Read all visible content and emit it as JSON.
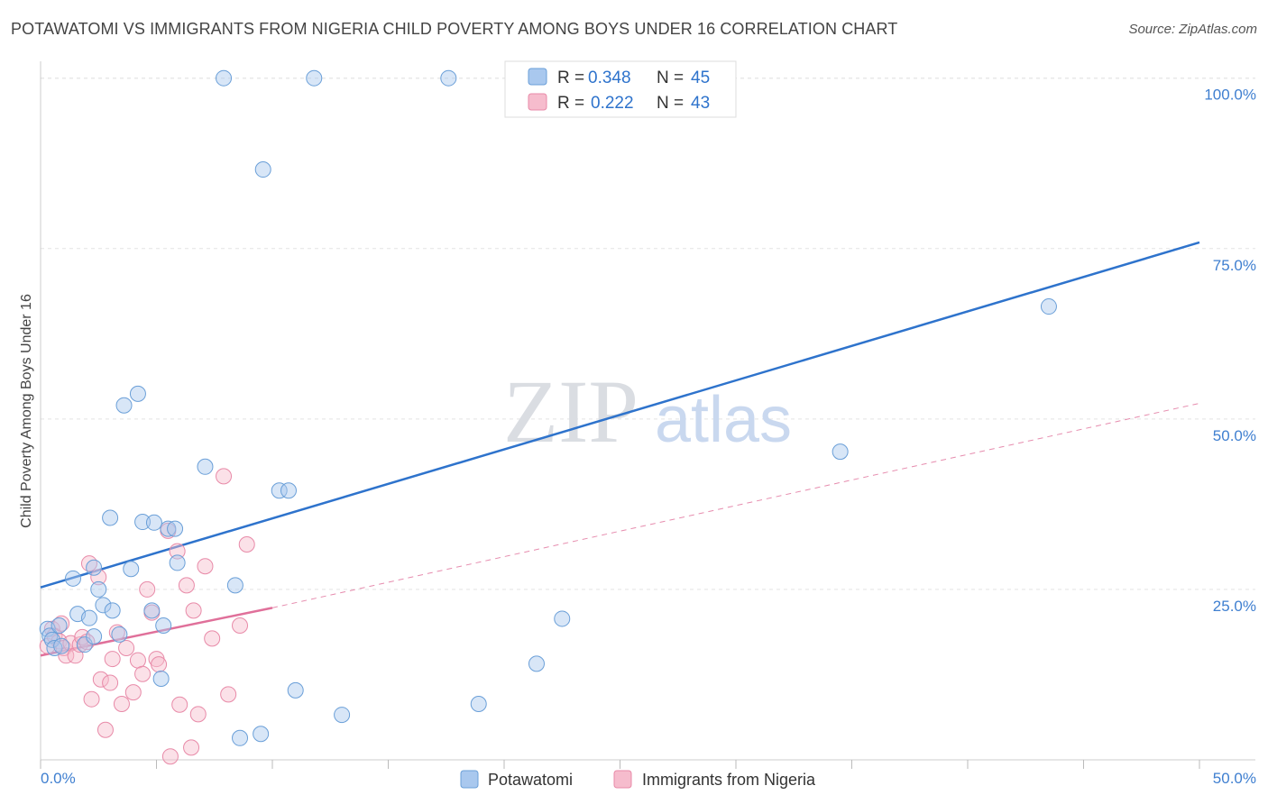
{
  "title": "POTAWATOMI VS IMMIGRANTS FROM NIGERIA CHILD POVERTY AMONG BOYS UNDER 16 CORRELATION CHART",
  "source": "Source: ZipAtlas.com",
  "watermark": {
    "zip": "ZIP",
    "atlas": "atlas"
  },
  "colors": {
    "blue_fill": "#a9c8ee",
    "blue_stroke": "#6a9fd8",
    "blue_line": "#2e73cc",
    "pink_fill": "#f6bccd",
    "pink_stroke": "#e88aa8",
    "pink_line": "#e0709a",
    "tick_text": "#3f7fd0",
    "grid": "#e4e4e4"
  },
  "legend": {
    "rows": [
      {
        "r_label": "R =",
        "r_value": "0.348",
        "n_label": "N =",
        "n_value": "45"
      },
      {
        "r_label": "R =",
        "r_value": "0.222",
        "n_label": "N =",
        "n_value": "43"
      }
    ]
  },
  "bottom_legend": [
    "Potawatomi",
    "Immigrants from Nigeria"
  ],
  "chart_data": {
    "type": "scatter",
    "title": "POTAWATOMI VS IMMIGRANTS FROM NIGERIA CHILD POVERTY AMONG BOYS UNDER 16 CORRELATION CHART",
    "xlabel": "",
    "ylabel": "Child Poverty Among Boys Under 16",
    "xlim": [
      0,
      50
    ],
    "ylim": [
      0,
      103
    ],
    "x_tick_labels": [
      "0.0%",
      "50.0%"
    ],
    "y_ticks": [
      25,
      50,
      75,
      100
    ],
    "y_tick_labels": [
      "25.0%",
      "50.0%",
      "75.0%",
      "100.0%"
    ],
    "series": [
      {
        "name": "Potawatomi",
        "r": 0.348,
        "n": 45,
        "trend": {
          "x0": 0,
          "y0": 25.3,
          "x1": 50,
          "y1": 75.9,
          "style": "solid"
        },
        "points": [
          [
            0.3,
            19.2
          ],
          [
            0.4,
            18.2
          ],
          [
            0.5,
            17.6
          ],
          [
            0.6,
            16.4
          ],
          [
            0.8,
            19.7
          ],
          [
            0.9,
            16.7
          ],
          [
            1.4,
            26.6
          ],
          [
            1.6,
            21.4
          ],
          [
            1.9,
            16.9
          ],
          [
            2.1,
            20.8
          ],
          [
            2.3,
            18.1
          ],
          [
            2.3,
            28.2
          ],
          [
            2.5,
            25.0
          ],
          [
            2.7,
            22.7
          ],
          [
            3.0,
            35.5
          ],
          [
            3.1,
            21.9
          ],
          [
            3.4,
            18.4
          ],
          [
            3.6,
            52.0
          ],
          [
            3.9,
            28.0
          ],
          [
            4.2,
            53.7
          ],
          [
            4.4,
            34.9
          ],
          [
            4.8,
            21.9
          ],
          [
            4.9,
            34.8
          ],
          [
            5.2,
            11.9
          ],
          [
            5.3,
            19.7
          ],
          [
            5.5,
            33.9
          ],
          [
            5.8,
            33.9
          ],
          [
            5.9,
            28.9
          ],
          [
            7.1,
            43.0
          ],
          [
            7.9,
            100.0
          ],
          [
            8.4,
            25.6
          ],
          [
            8.6,
            3.2
          ],
          [
            9.5,
            3.8
          ],
          [
            9.6,
            86.6
          ],
          [
            10.3,
            39.5
          ],
          [
            10.7,
            39.5
          ],
          [
            11.0,
            10.2
          ],
          [
            11.8,
            100.0
          ],
          [
            13.0,
            6.6
          ],
          [
            17.6,
            100.0
          ],
          [
            18.9,
            8.2
          ],
          [
            21.4,
            14.1
          ],
          [
            22.5,
            20.7
          ],
          [
            34.5,
            45.2
          ],
          [
            43.5,
            66.5
          ]
        ]
      },
      {
        "name": "Immigrants from Nigeria",
        "r": 0.222,
        "n": 43,
        "trend": {
          "x0": 0,
          "y0": 15.3,
          "x1": 10,
          "y1": 22.3,
          "style": "solid",
          "extension": {
            "x0": 10,
            "y0": 22.3,
            "x1": 50,
            "y1": 52.3,
            "style": "dashed"
          }
        },
        "points": [
          [
            0.3,
            16.7
          ],
          [
            0.5,
            19.2
          ],
          [
            0.6,
            18.2
          ],
          [
            0.8,
            17.4
          ],
          [
            0.9,
            20.0
          ],
          [
            1.0,
            16.4
          ],
          [
            1.1,
            15.3
          ],
          [
            1.3,
            17.1
          ],
          [
            1.5,
            15.3
          ],
          [
            1.7,
            16.9
          ],
          [
            1.8,
            18.0
          ],
          [
            2.0,
            17.3
          ],
          [
            2.1,
            28.8
          ],
          [
            2.2,
            8.9
          ],
          [
            2.5,
            26.8
          ],
          [
            2.6,
            11.8
          ],
          [
            2.8,
            4.4
          ],
          [
            3.0,
            11.3
          ],
          [
            3.1,
            14.8
          ],
          [
            3.3,
            18.7
          ],
          [
            3.5,
            8.2
          ],
          [
            3.7,
            16.4
          ],
          [
            4.0,
            9.9
          ],
          [
            4.2,
            14.6
          ],
          [
            4.4,
            12.6
          ],
          [
            4.6,
            25.0
          ],
          [
            4.8,
            21.6
          ],
          [
            5.0,
            14.8
          ],
          [
            5.1,
            14.0
          ],
          [
            5.5,
            33.6
          ],
          [
            5.6,
            0.5
          ],
          [
            5.9,
            30.6
          ],
          [
            6.0,
            8.1
          ],
          [
            6.3,
            25.6
          ],
          [
            6.5,
            1.8
          ],
          [
            6.6,
            21.9
          ],
          [
            6.8,
            6.7
          ],
          [
            7.1,
            28.4
          ],
          [
            7.4,
            17.8
          ],
          [
            7.9,
            41.6
          ],
          [
            8.1,
            9.6
          ],
          [
            8.6,
            19.7
          ],
          [
            8.9,
            31.6
          ]
        ]
      }
    ]
  }
}
